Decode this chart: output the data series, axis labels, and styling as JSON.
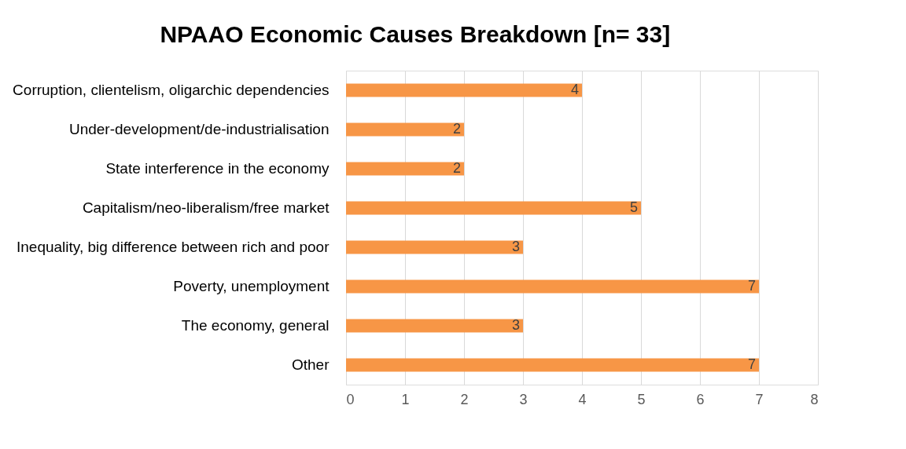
{
  "chart_data": {
    "type": "bar",
    "orientation": "horizontal",
    "title": "NPAAO Economic Causes Breakdown [n= 33]",
    "categories": [
      "Corruption, clientelism, oligarchic dependencies",
      "Under-development/de-industrialisation",
      "State interference in the economy",
      "Capitalism/neo-liberalism/free market",
      "Inequality, big difference between rich and poor",
      "Poverty, unemployment",
      "The economy, general",
      "Other"
    ],
    "values": [
      4,
      2,
      2,
      5,
      3,
      7,
      3,
      7
    ],
    "color": "#f79646",
    "xlim": [
      0,
      8
    ],
    "xticks": [
      0,
      1,
      2,
      3,
      4,
      5,
      6,
      7,
      8
    ],
    "grid": "x",
    "data_labels": true
  }
}
